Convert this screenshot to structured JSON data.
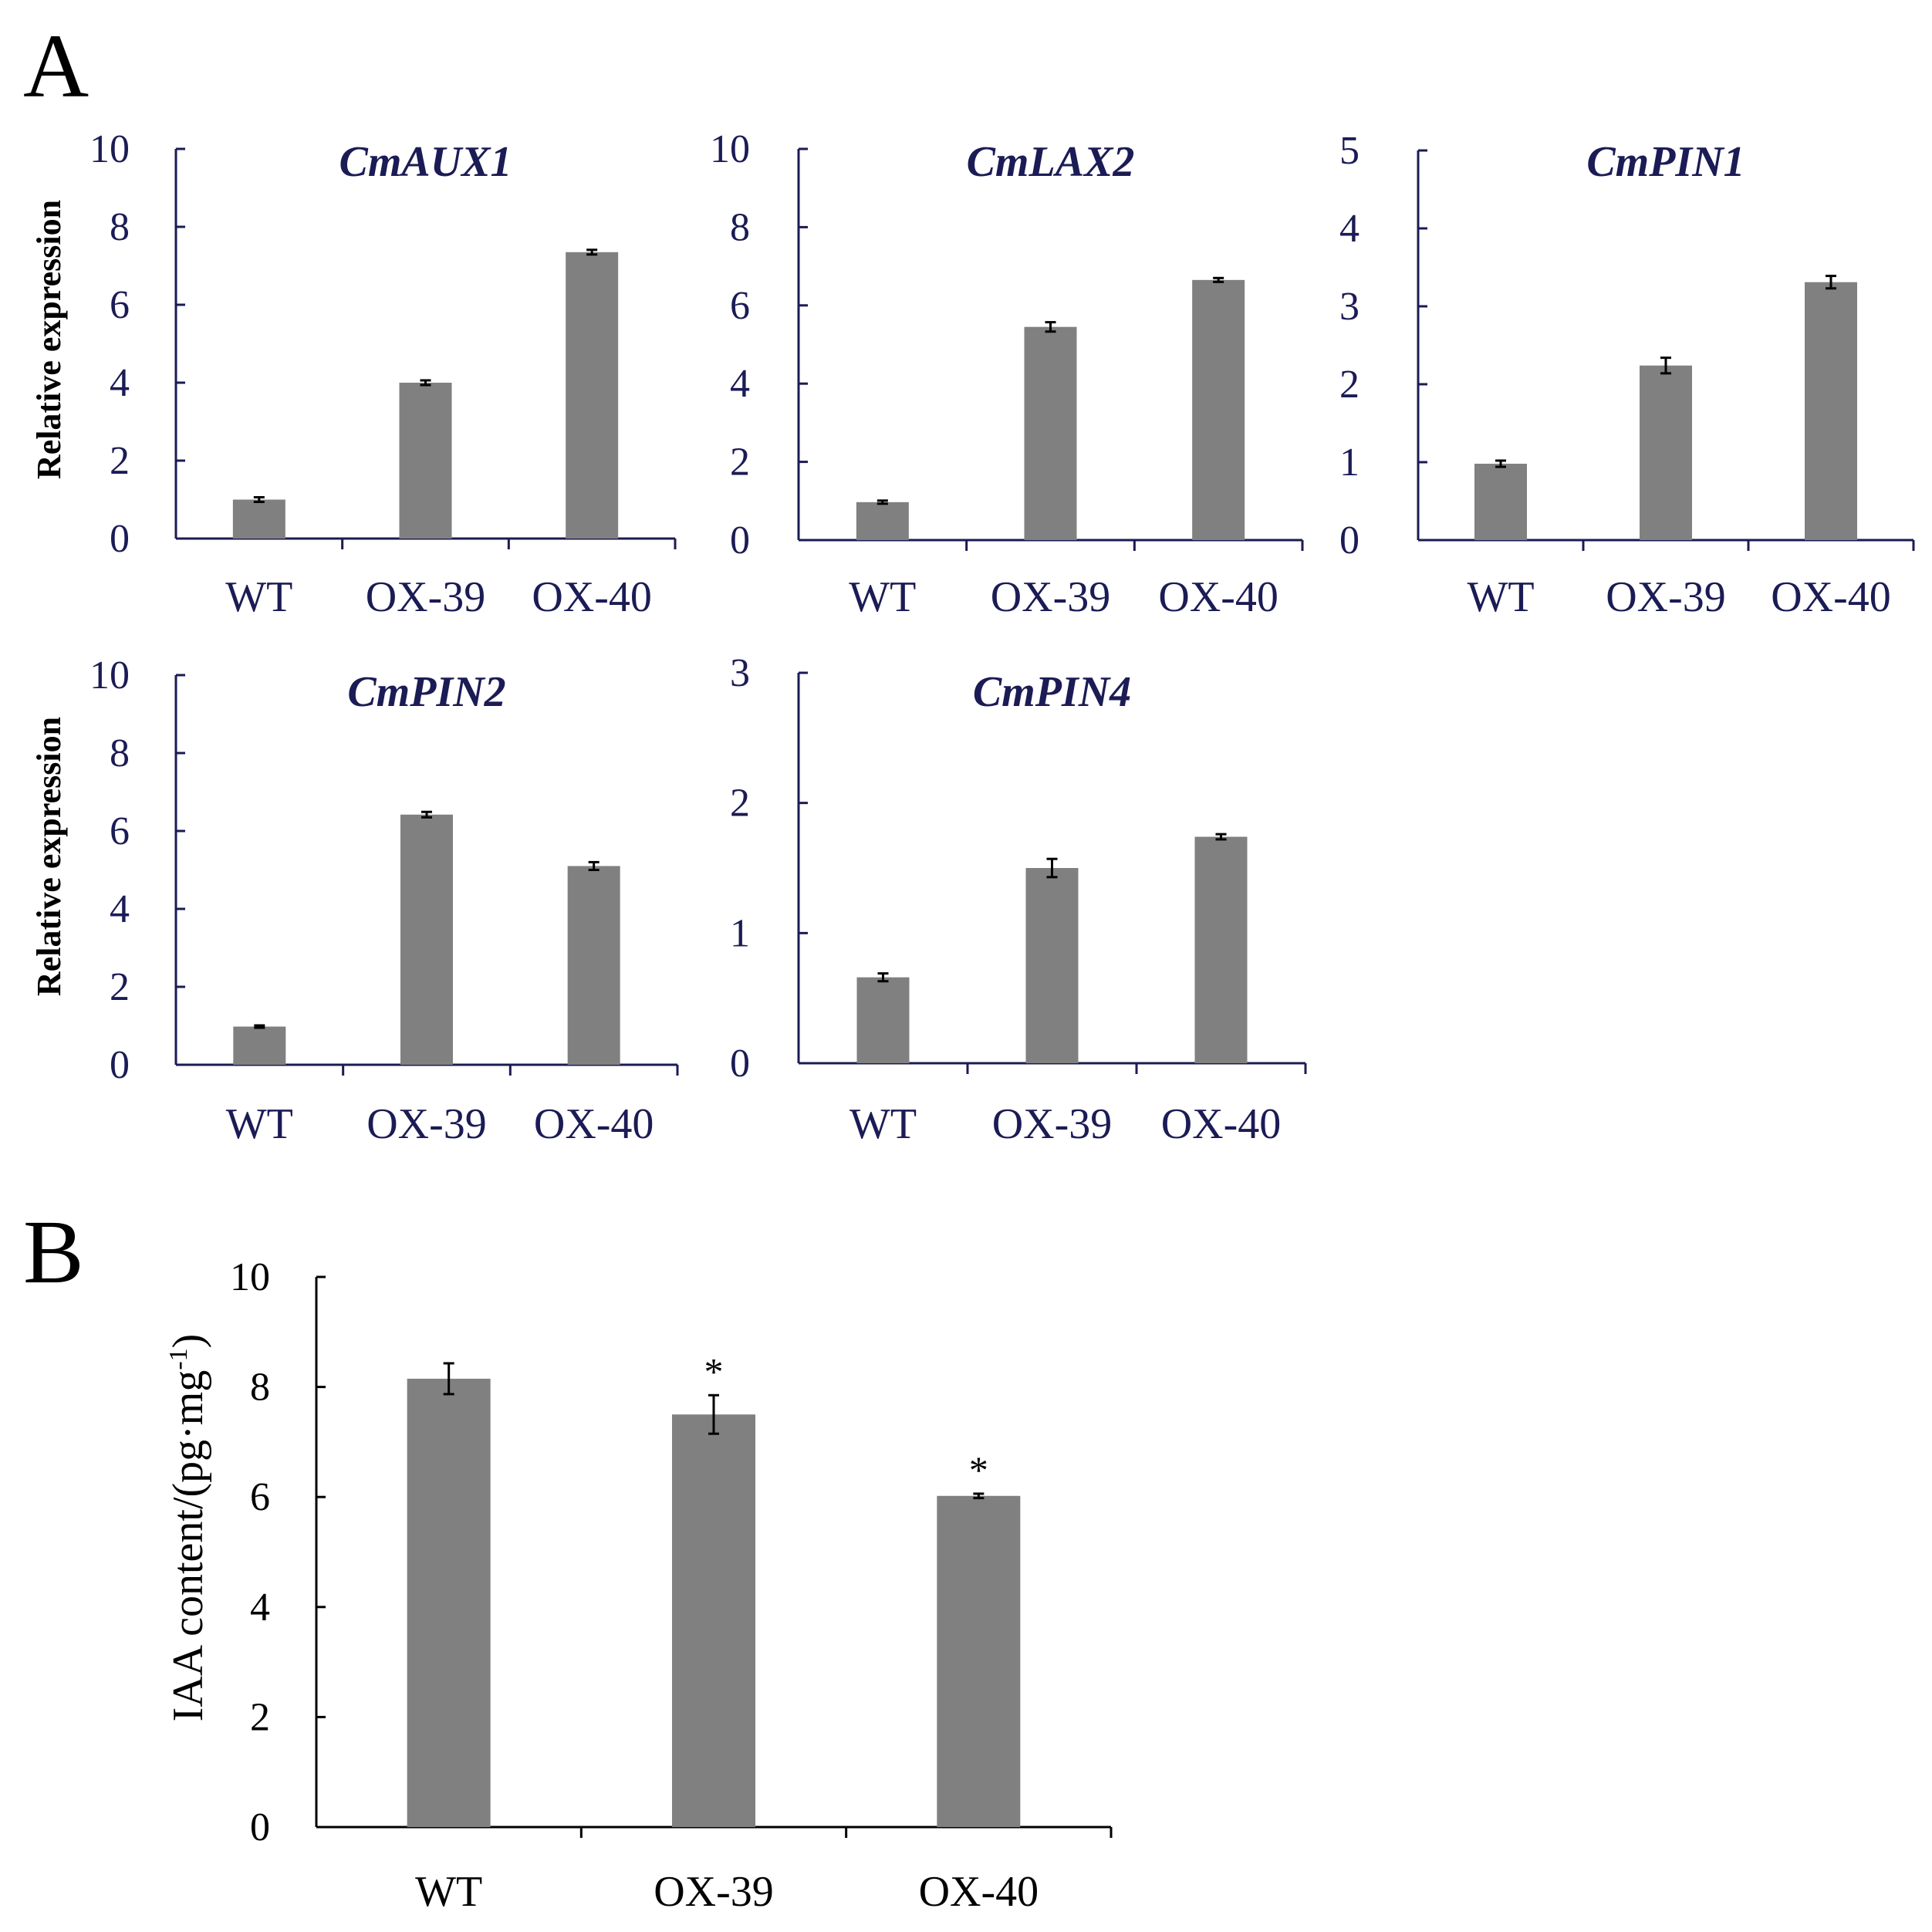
{
  "panel_letters": {
    "a": "A",
    "b": "B"
  },
  "colors": {
    "bar": "#808080",
    "axis_a": "#1b1b55",
    "axis_b": "#000000"
  },
  "chart_data": [
    {
      "id": "aux1",
      "panel": "A",
      "type": "bar",
      "title": "CmAUX1",
      "xlabel": "",
      "ylabel": "Relative expression",
      "categories": [
        "WT",
        "OX-39",
        "OX-40"
      ],
      "values": [
        1.0,
        4.0,
        7.35
      ],
      "errors": [
        0.06,
        0.06,
        0.06
      ],
      "ylim": [
        0,
        10
      ],
      "yticks": [
        "0",
        "2",
        "4",
        "6",
        "8",
        "10"
      ]
    },
    {
      "id": "lax2",
      "panel": "A",
      "type": "bar",
      "title": "CmLAX2",
      "xlabel": "",
      "ylabel": "",
      "categories": [
        "WT",
        "OX-39",
        "OX-40"
      ],
      "values": [
        0.97,
        5.45,
        6.65
      ],
      "errors": [
        0.04,
        0.12,
        0.05
      ],
      "ylim": [
        0,
        10
      ],
      "yticks": [
        "0",
        "2",
        "4",
        "6",
        "8",
        "10"
      ]
    },
    {
      "id": "pin1",
      "panel": "A",
      "type": "bar",
      "title": "CmPIN1",
      "xlabel": "",
      "ylabel": "",
      "categories": [
        "WT",
        "OX-39",
        "OX-40"
      ],
      "values": [
        0.98,
        2.24,
        3.31
      ],
      "errors": [
        0.04,
        0.1,
        0.08
      ],
      "ylim": [
        0,
        5
      ],
      "yticks": [
        "0",
        "1",
        "2",
        "3",
        "4",
        "5"
      ]
    },
    {
      "id": "pin2",
      "panel": "A",
      "type": "bar",
      "title": "CmPIN2",
      "xlabel": "",
      "ylabel": "Relative expression",
      "categories": [
        "WT",
        "OX-39",
        "OX-40"
      ],
      "values": [
        0.98,
        6.42,
        5.1
      ],
      "errors": [
        0.03,
        0.07,
        0.1
      ],
      "ylim": [
        0,
        10
      ],
      "yticks": [
        "0",
        "2",
        "4",
        "6",
        "8",
        "10"
      ]
    },
    {
      "id": "pin4",
      "panel": "A",
      "type": "bar",
      "title": "CmPIN4",
      "xlabel": "",
      "ylabel": "",
      "categories": [
        "WT",
        "OX-39",
        "OX-40"
      ],
      "values": [
        0.66,
        1.5,
        1.74
      ],
      "errors": [
        0.03,
        0.07,
        0.02
      ],
      "ylim": [
        0,
        3
      ],
      "yticks": [
        "0",
        "1",
        "2",
        "3"
      ]
    },
    {
      "id": "iaa",
      "panel": "B",
      "type": "bar",
      "title": "",
      "xlabel": "",
      "ylabel": "IAA content/(pg·mg",
      "ylabel_sup": "-1",
      "ylabel_end": ")",
      "categories": [
        "WT",
        "OX-39",
        "OX-40"
      ],
      "values": [
        8.15,
        7.5,
        6.02
      ],
      "errors": [
        0.28,
        0.35,
        0.04
      ],
      "annotations": [
        "",
        "*",
        "*"
      ],
      "ylim": [
        0,
        10
      ],
      "yticks": [
        "0",
        "2",
        "4",
        "6",
        "8",
        "10"
      ]
    }
  ]
}
